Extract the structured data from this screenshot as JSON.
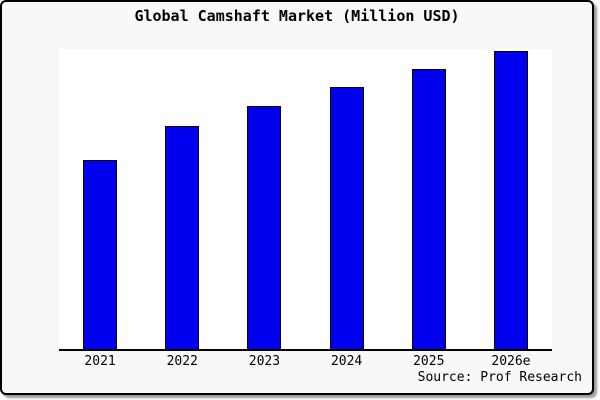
{
  "chart": {
    "source_label": "Source: Prof Research",
    "colors": {
      "bar_fill": "#0000ee",
      "bar_border": "#000000",
      "plot_background": "#ffffff",
      "card_background": "#f8f8f8",
      "axis": "#000000",
      "text": "#000000"
    }
  },
  "chart_data": {
    "type": "bar",
    "title": "Global Camshaft Market (Million USD)",
    "categories": [
      "2021",
      "2022",
      "2023",
      "2024",
      "2025",
      "2026e"
    ],
    "values": [
      63,
      74.5,
      81,
      87.5,
      93.5,
      99.5
    ],
    "xlabel": "",
    "ylabel": "",
    "ylim": [
      0,
      100
    ],
    "value_scale_note": "no y-axis shown; values estimated as percent of plot height",
    "grid": false,
    "legend_position": "none",
    "annotations": [
      "Source: Prof Research"
    ]
  }
}
